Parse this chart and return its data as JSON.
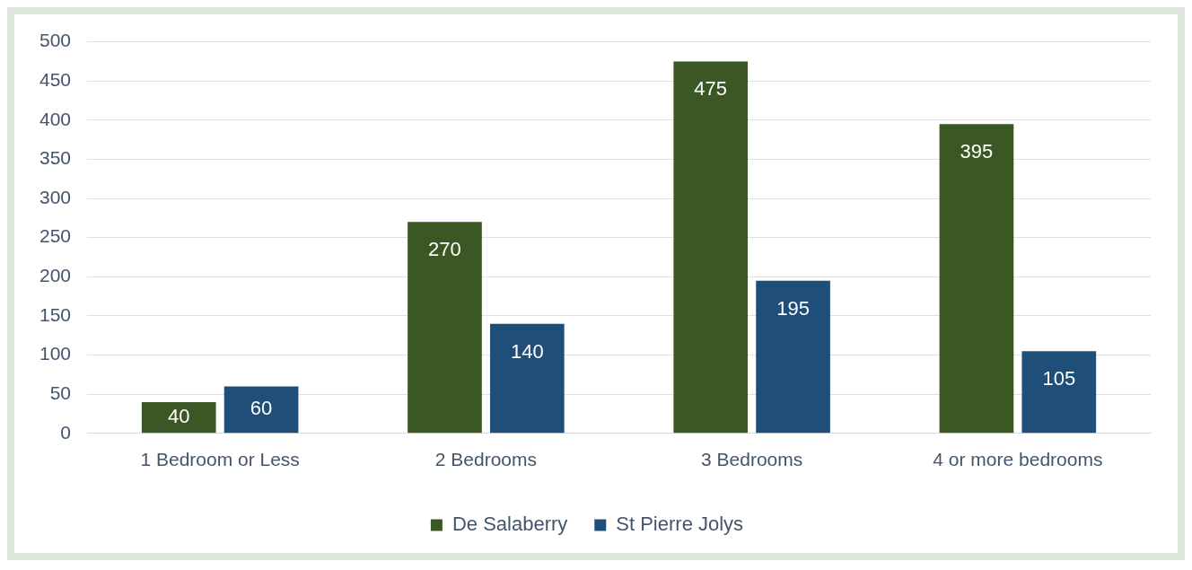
{
  "chart_data": {
    "type": "bar",
    "categories": [
      "1 Bedroom or Less",
      "2 Bedrooms",
      "3 Bedrooms",
      "4 or more bedrooms"
    ],
    "series": [
      {
        "name": "De Salaberry",
        "color": "#3b5723",
        "values": [
          40,
          270,
          475,
          395
        ]
      },
      {
        "name": "St Pierre Jolys",
        "color": "#1f4e79",
        "values": [
          60,
          140,
          195,
          105
        ]
      }
    ],
    "ylim": [
      0,
      500
    ],
    "yticks": [
      0,
      50,
      100,
      150,
      200,
      250,
      300,
      350,
      400,
      450,
      500
    ],
    "grid": "y",
    "legend": "bottom",
    "data_labels": true
  }
}
